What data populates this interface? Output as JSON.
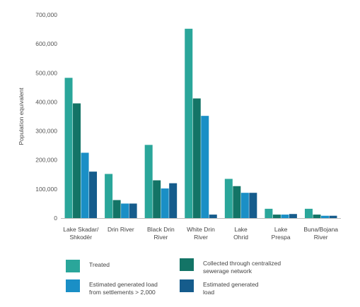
{
  "chart_data": {
    "type": "bar",
    "title": "",
    "xlabel": "",
    "ylabel": "Population equivalent",
    "ylim": [
      0,
      700000
    ],
    "yticks": [
      "0",
      "100,000",
      "200,000",
      "300,000",
      "400,000",
      "500,000",
      "600,000",
      "700,000"
    ],
    "ytick_values": [
      0,
      100000,
      200000,
      300000,
      400000,
      500000,
      600000,
      700000
    ],
    "grid": false,
    "legend_placement": "bottom",
    "categories": [
      [
        "Lake Skadar/",
        "Shkodër"
      ],
      [
        "Drin River"
      ],
      [
        "Black Drin",
        "River"
      ],
      [
        "White Drin",
        "River"
      ],
      [
        "Lake",
        "Ohrid"
      ],
      [
        "Lake",
        "Prespa"
      ],
      [
        "Buna/Bojana",
        "River"
      ]
    ],
    "series": [
      {
        "name": "Treated",
        "color": "#2aa69a",
        "values": [
          483000,
          152000,
          252000,
          652000,
          135000,
          32000,
          32000
        ]
      },
      {
        "name": "Collected through centralized\nsewerage network",
        "color": "#137466",
        "values": [
          395000,
          62000,
          130000,
          412000,
          110000,
          12000,
          12000
        ]
      },
      {
        "name": "Estimated generated load\nfrom settlements > 2,000",
        "color": "#1a8fc6",
        "values": [
          225000,
          50000,
          102000,
          352000,
          87000,
          12000,
          8000
        ]
      },
      {
        "name": "Estimated generated\nload",
        "color": "#155c8c",
        "values": [
          160000,
          50000,
          120000,
          12000,
          87000,
          14000,
          8000
        ]
      }
    ]
  }
}
